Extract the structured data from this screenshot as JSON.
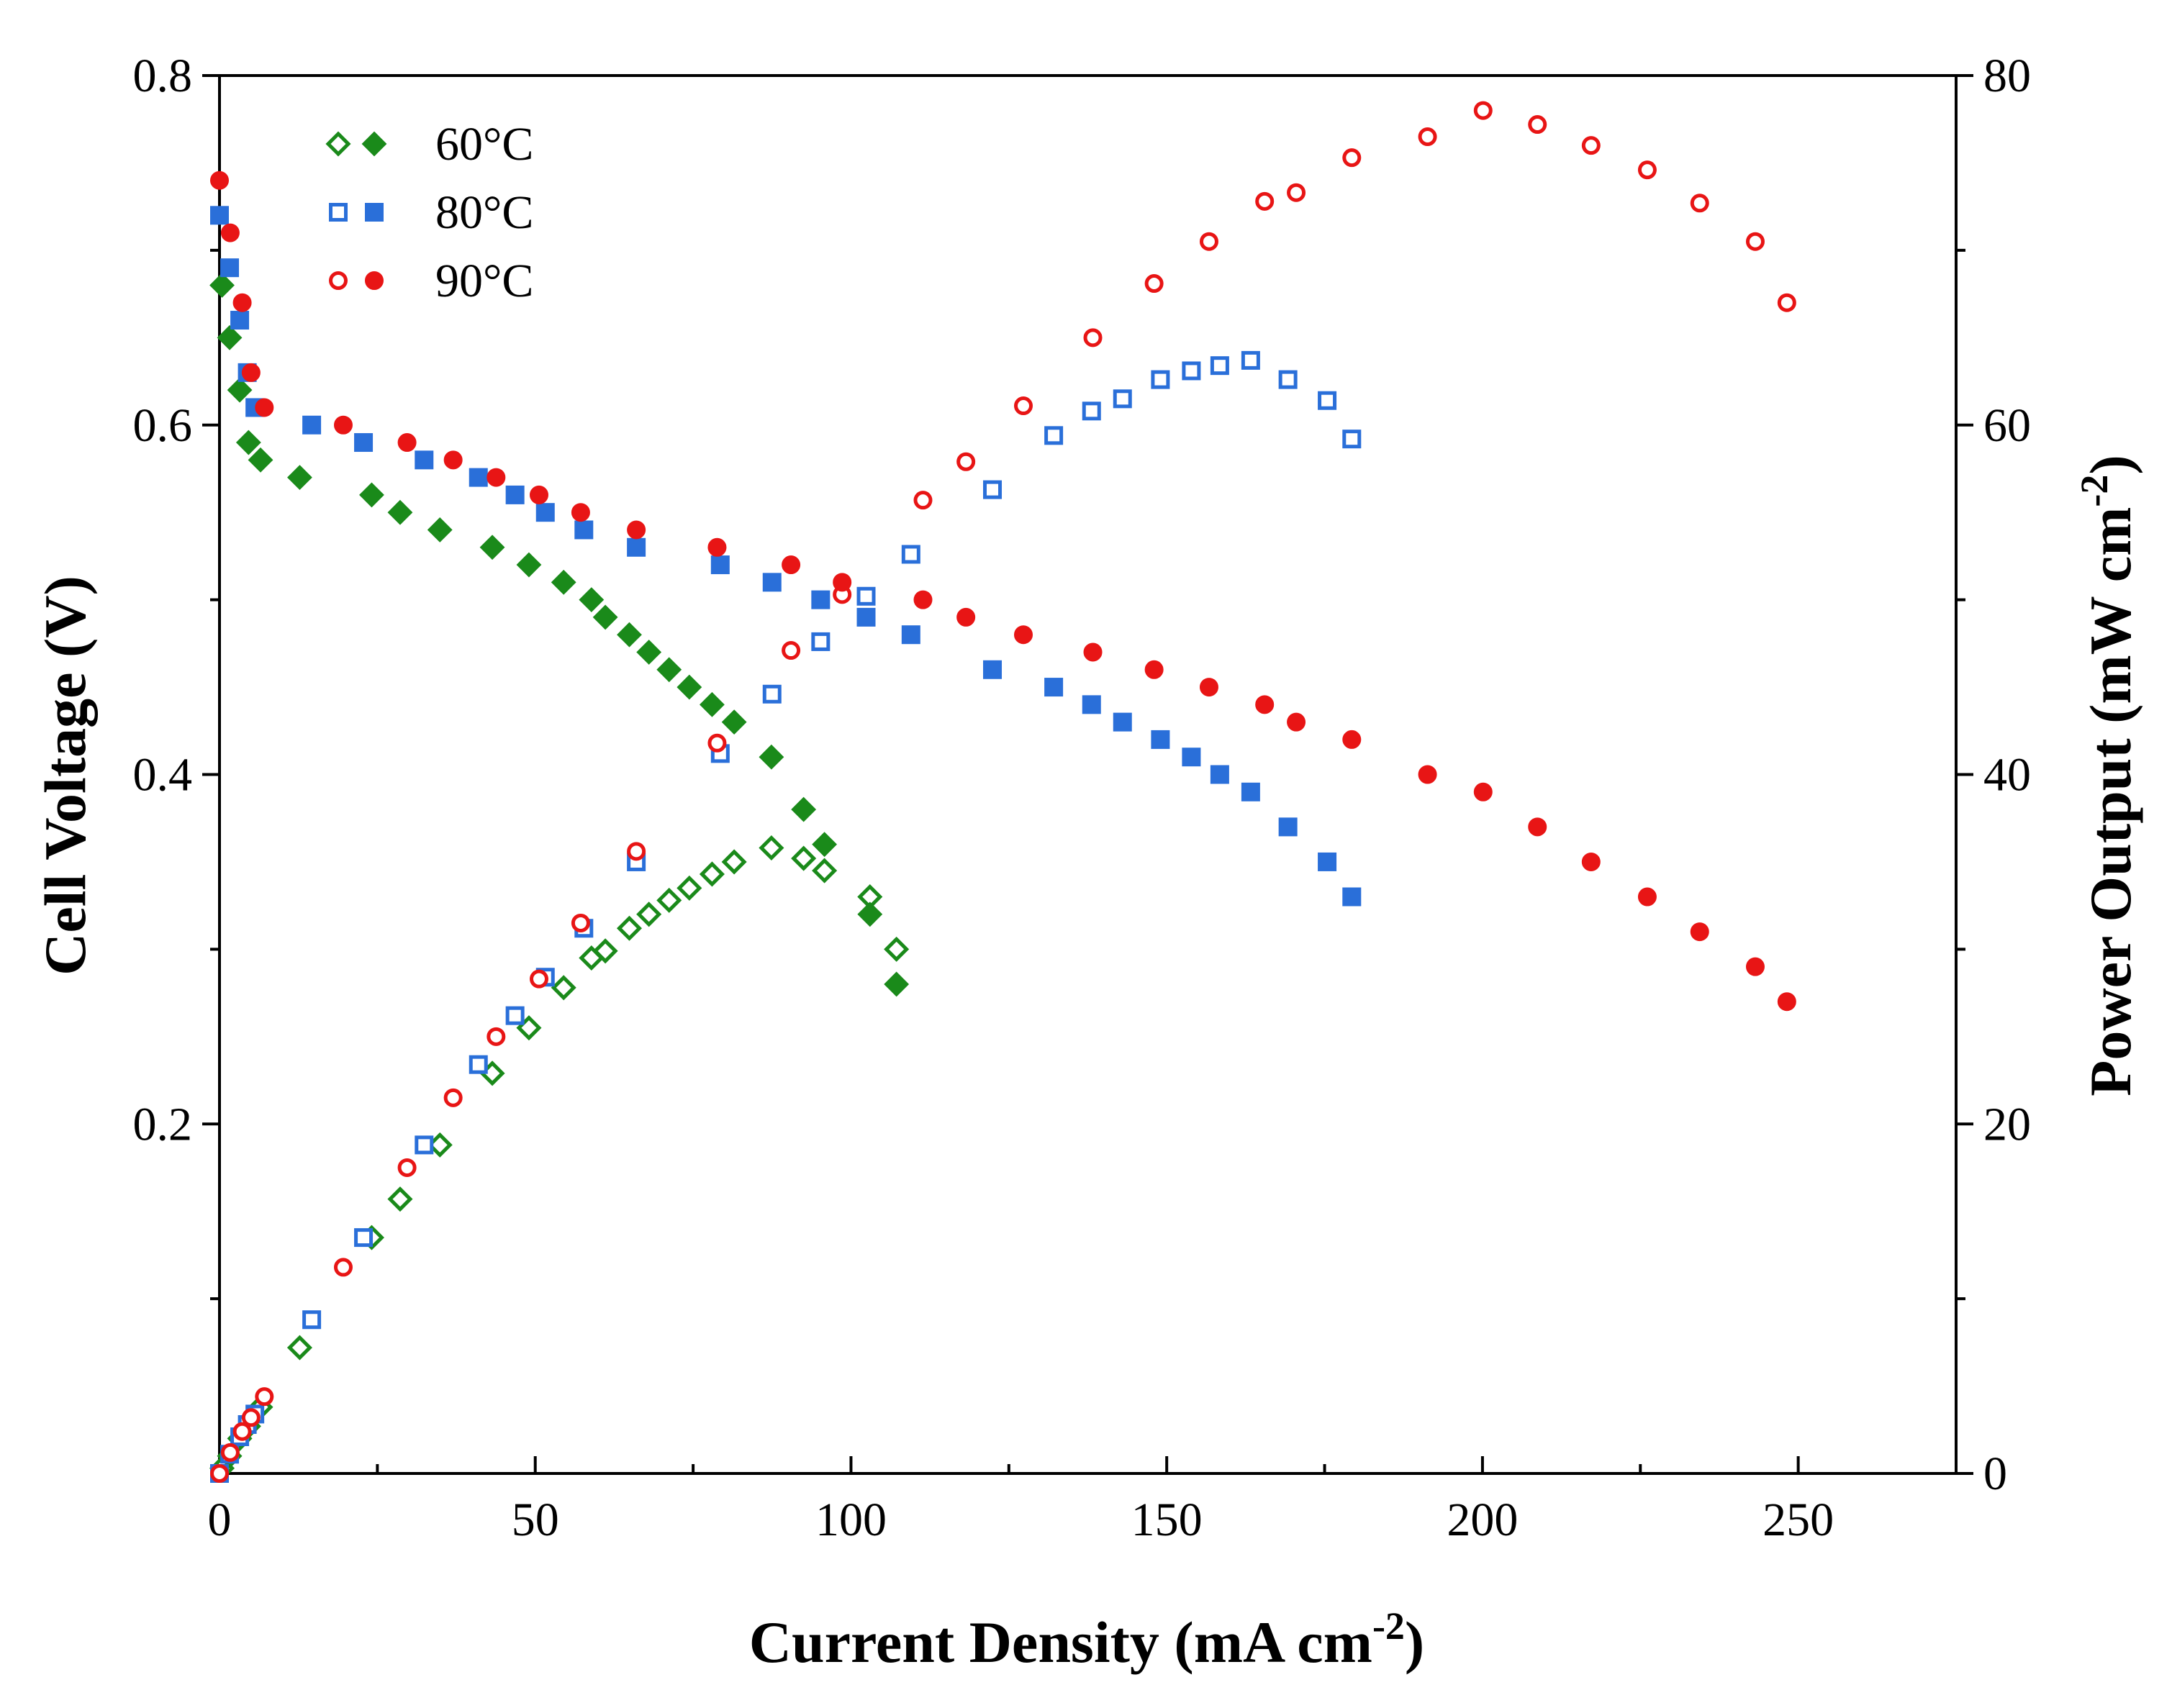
{
  "chart_data": {
    "type": "scatter",
    "xlabel": "Current Density (mA cm",
    "xlabel_sup": "-2",
    "xlabel_end": ")",
    "ylabel": "Cell Voltage (V)",
    "y2label": "Power Output (mW cm",
    "y2label_sup": "-2",
    "y2label_end": ")",
    "xlim": [
      0,
      275
    ],
    "ylim": [
      0,
      0.8
    ],
    "y2lim": [
      0,
      80
    ],
    "xticks": [
      0,
      50,
      100,
      150,
      200,
      250
    ],
    "yticks": [
      0.2,
      0.4,
      0.6,
      0.8
    ],
    "y2ticks": [
      0,
      20,
      40,
      60,
      80
    ],
    "legend_position": "top-left",
    "series": [
      {
        "name": "60°C",
        "color": "#1a8a1a",
        "marker": "diamond",
        "voltage": [
          [
            0.4,
            0.68
          ],
          [
            1.6,
            0.65
          ],
          [
            3.2,
            0.62
          ],
          [
            4.6,
            0.59
          ],
          [
            6.5,
            0.58
          ],
          [
            12.7,
            0.57
          ],
          [
            24.1,
            0.56
          ],
          [
            28.6,
            0.55
          ],
          [
            34.9,
            0.54
          ],
          [
            43.2,
            0.53
          ],
          [
            49,
            0.52
          ],
          [
            54.5,
            0.51
          ],
          [
            58.9,
            0.5
          ],
          [
            61.1,
            0.49
          ],
          [
            64.9,
            0.48
          ],
          [
            68,
            0.47
          ],
          [
            71.2,
            0.46
          ],
          [
            74.4,
            0.45
          ],
          [
            78,
            0.44
          ],
          [
            81.5,
            0.43
          ],
          [
            87.4,
            0.41
          ],
          [
            92.5,
            0.38
          ],
          [
            95.8,
            0.36
          ],
          [
            103,
            0.32
          ],
          [
            107.2,
            0.28
          ]
        ],
        "power": [
          [
            0.4,
            0.3
          ],
          [
            1.6,
            1
          ],
          [
            3.2,
            2
          ],
          [
            4.6,
            2.7
          ],
          [
            6.5,
            3.8
          ],
          [
            12.7,
            7.2
          ],
          [
            24.1,
            13.5
          ],
          [
            28.6,
            15.7
          ],
          [
            34.9,
            18.8
          ],
          [
            43.2,
            22.9
          ],
          [
            49,
            25.5
          ],
          [
            54.5,
            27.8
          ],
          [
            58.9,
            29.5
          ],
          [
            61.1,
            29.9
          ],
          [
            64.9,
            31.2
          ],
          [
            68,
            32
          ],
          [
            71.2,
            32.8
          ],
          [
            74.4,
            33.5
          ],
          [
            78,
            34.3
          ],
          [
            81.5,
            35
          ],
          [
            87.4,
            35.8
          ],
          [
            92.5,
            35.2
          ],
          [
            95.8,
            34.5
          ],
          [
            103,
            33
          ],
          [
            107.2,
            30
          ]
        ]
      },
      {
        "name": "80°C",
        "color": "#2a6fd9",
        "marker": "square",
        "voltage": [
          [
            0,
            0.72
          ],
          [
            1.6,
            0.69
          ],
          [
            3.2,
            0.66
          ],
          [
            4.4,
            0.63
          ],
          [
            5.6,
            0.61
          ],
          [
            14.6,
            0.6
          ],
          [
            22.8,
            0.59
          ],
          [
            32.4,
            0.58
          ],
          [
            41,
            0.57
          ],
          [
            46.8,
            0.56
          ],
          [
            51.6,
            0.55
          ],
          [
            57.7,
            0.54
          ],
          [
            66,
            0.53
          ],
          [
            79.3,
            0.52
          ],
          [
            87.5,
            0.51
          ],
          [
            95.2,
            0.5
          ],
          [
            102.4,
            0.49
          ],
          [
            109.5,
            0.48
          ],
          [
            122.4,
            0.46
          ],
          [
            132.1,
            0.45
          ],
          [
            138.1,
            0.44
          ],
          [
            143,
            0.43
          ],
          [
            149,
            0.42
          ],
          [
            153.9,
            0.41
          ],
          [
            158.4,
            0.4
          ],
          [
            163.3,
            0.39
          ],
          [
            169.2,
            0.37
          ],
          [
            175.4,
            0.35
          ],
          [
            179.3,
            0.33
          ]
        ],
        "power": [
          [
            0,
            0
          ],
          [
            1.6,
            1.1
          ],
          [
            3.2,
            2.1
          ],
          [
            4.4,
            2.8
          ],
          [
            5.6,
            3.4
          ],
          [
            14.6,
            8.8
          ],
          [
            22.8,
            13.5
          ],
          [
            32.4,
            18.8
          ],
          [
            41,
            23.4
          ],
          [
            46.8,
            26.2
          ],
          [
            51.6,
            28.4
          ],
          [
            57.7,
            31.2
          ],
          [
            66,
            35
          ],
          [
            79.3,
            41.2
          ],
          [
            87.5,
            44.6
          ],
          [
            95.2,
            47.6
          ],
          [
            102.4,
            50.2
          ],
          [
            109.5,
            52.6
          ],
          [
            122.4,
            56.3
          ],
          [
            132.1,
            59.4
          ],
          [
            138.1,
            60.8
          ],
          [
            143,
            61.5
          ],
          [
            149,
            62.6
          ],
          [
            153.9,
            63.1
          ],
          [
            158.4,
            63.4
          ],
          [
            163.3,
            63.7
          ],
          [
            169.2,
            62.6
          ],
          [
            175.4,
            61.4
          ],
          [
            179.3,
            59.2
          ]
        ]
      },
      {
        "name": "90°C",
        "color": "#e81515",
        "marker": "circle",
        "voltage": [
          [
            0,
            0.74
          ],
          [
            1.7,
            0.71
          ],
          [
            3.6,
            0.67
          ],
          [
            5,
            0.63
          ],
          [
            7.1,
            0.61
          ],
          [
            19.6,
            0.6
          ],
          [
            29.7,
            0.59
          ],
          [
            37,
            0.58
          ],
          [
            43.8,
            0.57
          ],
          [
            50.6,
            0.56
          ],
          [
            57.2,
            0.55
          ],
          [
            66,
            0.54
          ],
          [
            78.8,
            0.53
          ],
          [
            90.5,
            0.52
          ],
          [
            98.6,
            0.51
          ],
          [
            111.4,
            0.5
          ],
          [
            118.2,
            0.49
          ],
          [
            127.3,
            0.48
          ],
          [
            138.3,
            0.47
          ],
          [
            148,
            0.46
          ],
          [
            156.7,
            0.45
          ],
          [
            165.5,
            0.44
          ],
          [
            170.5,
            0.43
          ],
          [
            179.3,
            0.42
          ],
          [
            191.3,
            0.4
          ],
          [
            200.1,
            0.39
          ],
          [
            208.7,
            0.37
          ],
          [
            217.2,
            0.35
          ],
          [
            226.1,
            0.33
          ],
          [
            234.4,
            0.31
          ],
          [
            243.2,
            0.29
          ],
          [
            248.2,
            0.27
          ]
        ],
        "power": [
          [
            0,
            0
          ],
          [
            1.7,
            1.2
          ],
          [
            3.6,
            2.4
          ],
          [
            5,
            3.2
          ],
          [
            7.1,
            4.4
          ],
          [
            19.6,
            11.8
          ],
          [
            29.7,
            17.5
          ],
          [
            37,
            21.5
          ],
          [
            43.8,
            25
          ],
          [
            50.6,
            28.3
          ],
          [
            57.2,
            31.5
          ],
          [
            66,
            35.6
          ],
          [
            78.8,
            41.8
          ],
          [
            90.5,
            47.1
          ],
          [
            98.6,
            50.3
          ],
          [
            111.4,
            55.7
          ],
          [
            118.2,
            57.9
          ],
          [
            127.3,
            61.1
          ],
          [
            138.3,
            65
          ],
          [
            148,
            68.1
          ],
          [
            156.7,
            70.5
          ],
          [
            165.5,
            72.8
          ],
          [
            170.5,
            73.3
          ],
          [
            179.3,
            75.3
          ],
          [
            191.3,
            76.5
          ],
          [
            200.1,
            78
          ],
          [
            208.7,
            77.2
          ],
          [
            217.2,
            76
          ],
          [
            226.1,
            74.6
          ],
          [
            234.4,
            72.7
          ],
          [
            243.2,
            70.5
          ],
          [
            248.2,
            67
          ]
        ]
      }
    ]
  }
}
